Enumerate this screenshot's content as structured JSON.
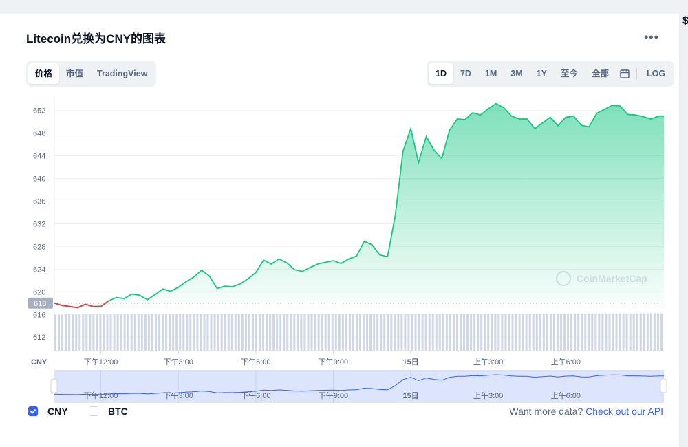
{
  "header": {
    "title": "Litecoin兑换为CNY的图表"
  },
  "view_tabs": [
    {
      "label": "价格",
      "active": true
    },
    {
      "label": "市值",
      "active": false
    },
    {
      "label": "TradingView",
      "active": false
    }
  ],
  "range_tabs": [
    {
      "label": "1D",
      "active": true
    },
    {
      "label": "7D",
      "active": false
    },
    {
      "label": "1M",
      "active": false
    },
    {
      "label": "3M",
      "active": false
    },
    {
      "label": "1Y",
      "active": false
    },
    {
      "label": "至今",
      "active": false
    },
    {
      "label": "全部",
      "active": false
    }
  ],
  "calendar_icon": "calendar-icon",
  "log_label": "LOG",
  "watermark": "CoinMarketCap",
  "currency_axis_label": "CNY",
  "colors": {
    "up": "#16c784",
    "down": "#ea3943",
    "accent": "#3861fb",
    "navigator_fill": "#dde5fd"
  },
  "chart_data": {
    "type": "line",
    "y_ticks": [
      612,
      616,
      620,
      624,
      628,
      632,
      636,
      640,
      644,
      648,
      652
    ],
    "ylim": [
      609.6,
      654.5
    ],
    "open_price": 618,
    "open_price_label": "618",
    "x_tick_labels": [
      "下午12:00",
      "下午3:00",
      "下午6:00",
      "下午9:00",
      "15日",
      "上午3:00",
      "上午6:00"
    ],
    "x_tick_hours": [
      12,
      15,
      18,
      21,
      24,
      27,
      30
    ],
    "x_range_hours": [
      10.2,
      33.8
    ],
    "series": [
      {
        "x_hours": [
          10.2,
          10.5,
          10.8,
          11.1,
          11.4,
          11.7,
          12.0,
          12.3,
          12.6,
          12.9,
          13.2,
          13.5,
          13.8,
          14.1,
          14.4,
          14.7,
          15.0,
          15.3,
          15.6,
          15.9,
          16.2,
          16.5,
          16.8,
          17.1,
          17.4,
          17.7,
          18.0,
          18.3,
          18.6,
          18.9,
          19.2,
          19.5,
          19.8,
          20.1,
          20.4,
          20.7,
          21.0,
          21.3,
          21.6,
          21.9,
          22.2,
          22.5,
          22.8,
          23.1,
          23.4,
          23.7,
          24.0,
          24.3,
          24.6,
          24.9,
          25.2,
          25.5,
          25.8,
          26.1,
          26.4,
          26.7,
          27.0,
          27.3,
          27.6,
          27.9,
          28.2,
          28.5,
          28.8,
          29.1,
          29.4,
          29.7,
          30.0,
          30.3,
          30.6,
          30.9,
          31.2,
          31.5,
          31.8,
          32.1,
          32.4,
          32.7,
          33.0,
          33.3,
          33.6,
          33.8
        ],
        "values": [
          618.0,
          617.6,
          617.4,
          617.2,
          617.8,
          617.4,
          617.4,
          618.4,
          619.0,
          618.8,
          619.6,
          619.4,
          618.6,
          619.5,
          620.5,
          620.1,
          620.8,
          621.8,
          622.6,
          623.8,
          622.8,
          620.6,
          621.0,
          620.9,
          621.4,
          622.3,
          623.4,
          625.6,
          624.9,
          625.8,
          625.1,
          623.9,
          623.6,
          624.3,
          624.9,
          625.2,
          625.5,
          625.0,
          625.8,
          626.3,
          628.9,
          628.3,
          626.5,
          626.2,
          633.5,
          644.8,
          648.8,
          642.8,
          647.4,
          645.0,
          643.5,
          648.5,
          650.5,
          650.4,
          651.6,
          651.2,
          652.3,
          653.2,
          652.5,
          651.0,
          650.5,
          650.5,
          648.8,
          649.8,
          650.8,
          649.3,
          650.8,
          651.0,
          649.4,
          649.1,
          651.5,
          652.2,
          652.9,
          652.8,
          651.3,
          651.2,
          650.9,
          650.5,
          651.0,
          651.0
        ]
      }
    ],
    "volume_heights": [
      0.55,
      0.56,
      0.55,
      0.57,
      0.56,
      0.57,
      0.58,
      0.57,
      0.58,
      0.59,
      0.58,
      0.6,
      0.59,
      0.6,
      0.61,
      0.6,
      0.62,
      0.61,
      0.62,
      0.63,
      0.62,
      0.63,
      0.64,
      0.63,
      0.65,
      0.64,
      0.66,
      0.65,
      0.66,
      0.67,
      0.66,
      0.68,
      0.67,
      0.68,
      0.69,
      0.68,
      0.7,
      0.69,
      0.7,
      0.71,
      0.7,
      0.72,
      0.73,
      0.72,
      0.74,
      0.73,
      0.75,
      0.74,
      0.76,
      0.75,
      0.77,
      0.78,
      0.77,
      0.79,
      0.78,
      0.8,
      0.79,
      0.81,
      0.8,
      0.82,
      0.81,
      0.83,
      0.84,
      0.83,
      0.85,
      0.84,
      0.86,
      0.85,
      0.87,
      0.86,
      0.88,
      0.87,
      0.89,
      0.88,
      0.9,
      0.89,
      0.91,
      0.9,
      0.92,
      0.91
    ],
    "navigator": {
      "tick_labels": [
        "下午12:00",
        "下午3:00",
        "下午6:00",
        "下午9:00",
        "15日",
        "上午3:00",
        "上午6:00"
      ]
    }
  },
  "footer": {
    "cny_label": "CNY",
    "cny_checked": true,
    "btc_label": "BTC",
    "btc_checked": false,
    "more_data_text": "Want more data?",
    "api_link": "Check out our API"
  }
}
